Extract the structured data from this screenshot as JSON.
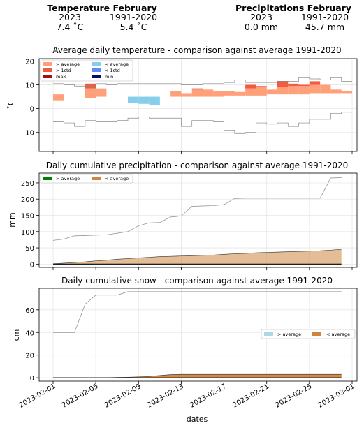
{
  "header": {
    "temperature": {
      "title": "Temperature February",
      "year_label": "2023",
      "year_value": "7.4 ˚C",
      "ref_label": "1991-2020",
      "ref_value": "5.4 ˚C"
    },
    "precipitation": {
      "title": "Precipitations February",
      "year_label": "2023",
      "year_value": "0.0 mm",
      "ref_label": "1991-2020",
      "ref_value": "45.7 mm"
    }
  },
  "x_ticks": [
    "2023-02-01",
    "2023-02-05",
    "2023-02-09",
    "2023-02-13",
    "2023-02-17",
    "2023-02-21",
    "2023-02-25",
    "2023-03-01"
  ],
  "xlabel": "dates",
  "colors": {
    "above_avg": "#ffa07a",
    "above_1std": "#f15b40",
    "max": "#a01010",
    "below_avg": "#87ceeb",
    "below_1std": "#5b8ef0",
    "min": "#0a0a6e",
    "precip_above": "#008000",
    "precip_below": "#cd853f",
    "snow_above": "#add8e6",
    "snow_below": "#cd853f",
    "line": "#888888"
  },
  "chart_data": [
    {
      "type": "area",
      "title": "Average daily temperature - comparison against average 1991-2020",
      "ylabel": "˚C",
      "ylim": [
        -18,
        21
      ],
      "yticks": [
        -10,
        0,
        10,
        20
      ],
      "grid": true,
      "legend": {
        "placement": "top-left",
        "entries": [
          "> average",
          "> 1std",
          "max",
          "< average",
          "< 1std",
          "min"
        ]
      },
      "dates": [
        "2023-02-01",
        "2023-02-02",
        "2023-02-03",
        "2023-02-04",
        "2023-02-05",
        "2023-02-06",
        "2023-02-07",
        "2023-02-08",
        "2023-02-09",
        "2023-02-10",
        "2023-02-11",
        "2023-02-12",
        "2023-02-13",
        "2023-02-14",
        "2023-02-15",
        "2023-02-16",
        "2023-02-17",
        "2023-02-18",
        "2023-02-19",
        "2023-02-20",
        "2023-02-21",
        "2023-02-22",
        "2023-02-23",
        "2023-02-24",
        "2023-02-25",
        "2023-02-26",
        "2023-02-27",
        "2023-02-28"
      ],
      "observed": [
        6,
        3.5,
        4,
        10.5,
        8.5,
        5,
        5,
        2.5,
        2,
        1.5,
        3.5,
        7.5,
        6.5,
        8.5,
        8,
        7.5,
        7.5,
        7,
        10,
        9.5,
        8,
        11.5,
        10.5,
        10,
        11.5,
        10,
        8,
        7.5
      ],
      "mean": [
        3.5,
        3.5,
        4,
        4.5,
        5,
        5,
        5,
        5,
        5,
        5,
        3.5,
        5,
        5,
        5,
        5,
        5,
        5.5,
        5.5,
        5.5,
        5.5,
        6,
        6,
        6,
        6,
        6.5,
        6.5,
        6.5,
        6.5
      ],
      "upper_1std": [
        7.5,
        7.5,
        8,
        8.5,
        9,
        9,
        9,
        9,
        9,
        9,
        8,
        8,
        8,
        8,
        8,
        8,
        8.5,
        8.5,
        8.5,
        9,
        9,
        9,
        9.5,
        9.5,
        10,
        10,
        10,
        10
      ],
      "lower_1std": [
        0.5,
        0.5,
        1,
        1,
        1.5,
        1.5,
        1.5,
        1.5,
        1.5,
        1.5,
        0.5,
        1.5,
        1.5,
        1.5,
        1.5,
        1.5,
        2,
        2,
        2,
        2,
        2.5,
        2.5,
        2.5,
        2.5,
        3,
        3,
        3,
        3
      ],
      "record_max": [
        10.5,
        10,
        9.5,
        9.5,
        10.5,
        10,
        10.5,
        10.5,
        10.5,
        10.5,
        10.5,
        10.5,
        10,
        10,
        10.5,
        10.5,
        11,
        12,
        11,
        11,
        11,
        11.5,
        11.5,
        13,
        12.5,
        12,
        13,
        11.5
      ],
      "record_min": [
        -5.5,
        -6,
        -7.5,
        -5,
        -5.5,
        -5.5,
        -5,
        -4,
        -3.5,
        -4,
        -4,
        -4,
        -7.5,
        -5,
        -5,
        -5.5,
        -9,
        -10.5,
        -10,
        -6,
        -6.5,
        -6,
        -7.5,
        -6,
        -4.5,
        -4.5,
        -2,
        -1.5
      ]
    },
    {
      "type": "area",
      "title": "Daily cumulative precipitation - comparison against average 1991-2020",
      "ylabel": "mm",
      "ylim": [
        -10,
        280
      ],
      "yticks": [
        0,
        50,
        100,
        150,
        200,
        250
      ],
      "grid": true,
      "legend": {
        "placement": "top-left",
        "entries": [
          "> average",
          "< average"
        ]
      },
      "x": [
        1,
        1.5,
        2,
        3,
        4,
        5,
        6,
        7,
        8,
        9,
        10,
        11,
        12,
        13,
        14,
        15,
        16,
        17,
        18,
        19,
        20,
        21,
        22,
        23,
        24,
        25,
        26,
        27,
        28
      ],
      "average": [
        1,
        2,
        3,
        5,
        7,
        10,
        12,
        15,
        17,
        19,
        21,
        23,
        24,
        25,
        26,
        27,
        28,
        30,
        32,
        33,
        35,
        36,
        37,
        38,
        39,
        40,
        41,
        43,
        45.7
      ],
      "observed": [
        0,
        0,
        0,
        0,
        0,
        0,
        0,
        0,
        0,
        0,
        0,
        0,
        0,
        0,
        0,
        0,
        0,
        0,
        0,
        0,
        0,
        0,
        0,
        0,
        0,
        0,
        0,
        0,
        0
      ],
      "record_max": [
        73,
        75,
        77,
        87,
        88,
        89,
        90,
        95,
        100,
        118,
        127,
        128,
        145,
        148,
        178,
        179,
        180,
        183,
        202,
        203,
        203,
        203,
        203,
        203,
        203,
        203,
        203,
        265,
        266
      ]
    },
    {
      "type": "area",
      "title": "Daily cumulative snow - comparison against average 1991-2020",
      "ylabel": "cm",
      "ylim": [
        -3,
        79
      ],
      "yticks": [
        0,
        20,
        40,
        60
      ],
      "grid": true,
      "legend": {
        "placement": "center-right",
        "entries": [
          "> average",
          "< average"
        ]
      },
      "x": [
        1,
        2,
        3,
        4,
        5,
        6,
        7,
        8,
        9,
        10,
        11,
        12,
        13,
        14,
        15,
        16,
        17,
        18,
        19,
        20,
        21,
        22,
        23,
        24,
        25,
        26,
        27,
        28
      ],
      "average": [
        0,
        0,
        0,
        0,
        0,
        0,
        0.3,
        0.5,
        0.8,
        1.2,
        2,
        2.8,
        3,
        3,
        3,
        3,
        3,
        3,
        3,
        3,
        3,
        3,
        3,
        3,
        3,
        3,
        3,
        3
      ],
      "observed": [
        0,
        0,
        0,
        0,
        0,
        0,
        0,
        0,
        0,
        0,
        0,
        0,
        0,
        0,
        0,
        0,
        0,
        0,
        0,
        0,
        0,
        0,
        0,
        0,
        0,
        0,
        0,
        0
      ],
      "record_max": [
        40,
        40,
        40,
        65,
        73,
        73,
        73,
        76,
        76,
        76,
        76,
        76,
        76,
        76,
        76,
        76,
        76,
        76,
        76,
        76,
        76,
        76,
        76,
        76,
        76,
        76,
        76,
        76
      ]
    }
  ]
}
